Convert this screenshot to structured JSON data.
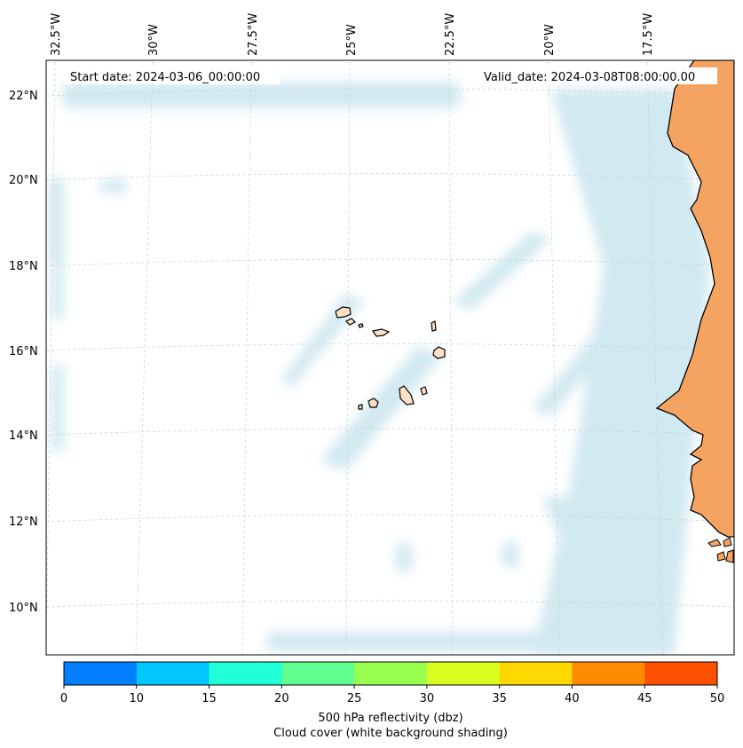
{
  "map": {
    "start_date": "Start date: 2024-03-06_00:00:00",
    "valid_date": "Valid_date: 2024-03-08T08:00:00.00",
    "lon_labels": [
      "32.5°W",
      "30°W",
      "27.5°W",
      "25°W",
      "22.5°W",
      "20°W",
      "17.5°W"
    ],
    "lat_labels": [
      "22°N",
      "20°N",
      "18°N",
      "16°N",
      "14°N",
      "12°N",
      "10°N"
    ],
    "land_color": "#f4a460",
    "island_color": "#fde0c5",
    "cloud_color": "#add8e6"
  },
  "colorbar": {
    "ticks": [
      "0",
      "10",
      "15",
      "20",
      "25",
      "30",
      "35",
      "40",
      "45",
      "50"
    ],
    "colors": [
      "#0080ff",
      "#00c8ff",
      "#20ffd8",
      "#60ff90",
      "#98ff50",
      "#d8ff20",
      "#ffd800",
      "#ff8c00",
      "#ff5000"
    ],
    "label_line1": "500 hPa reflectivity (dbz)",
    "label_line2": "Cloud cover (white background shading)"
  }
}
